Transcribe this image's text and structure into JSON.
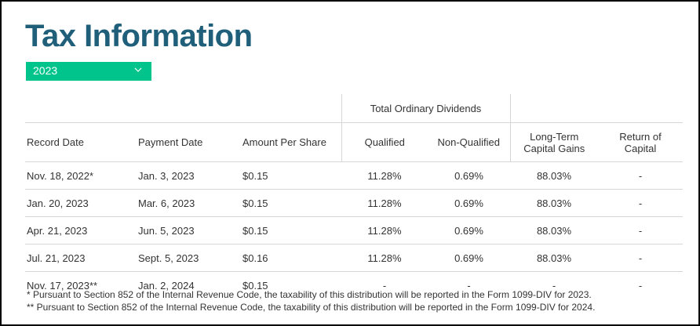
{
  "page": {
    "title": "Tax Information",
    "year_select": {
      "value": "2023",
      "icon": "chevron-down-icon"
    }
  },
  "table": {
    "group_header": "Total Ordinary Dividends",
    "columns": {
      "record_date": "Record Date",
      "payment_date": "Payment Date",
      "amount": "Amount Per Share",
      "qualified": "Qualified",
      "non_qualified": "Non-Qualified",
      "long_term_1": "Long-Term",
      "long_term_2": "Capital Gains",
      "return_1": "Return of",
      "return_2": "Capital"
    },
    "rows": [
      {
        "record_date": "Nov. 18, 2022*",
        "payment_date": "Jan. 3, 2023",
        "amount": "$0.15",
        "qualified": "11.28%",
        "non_qualified": "0.69%",
        "long_term": "88.03%",
        "return_of_capital": "-"
      },
      {
        "record_date": "Jan. 20, 2023",
        "payment_date": "Mar. 6, 2023",
        "amount": "$0.15",
        "qualified": "11.28%",
        "non_qualified": "0.69%",
        "long_term": "88.03%",
        "return_of_capital": "-"
      },
      {
        "record_date": "Apr. 21, 2023",
        "payment_date": "Jun. 5, 2023",
        "amount": "$0.15",
        "qualified": "11.28%",
        "non_qualified": "0.69%",
        "long_term": "88.03%",
        "return_of_capital": "-"
      },
      {
        "record_date": "Jul. 21, 2023",
        "payment_date": "Sept. 5, 2023",
        "amount": "$0.16",
        "qualified": "11.28%",
        "non_qualified": "0.69%",
        "long_term": "88.03%",
        "return_of_capital": "-"
      },
      {
        "record_date": "Nov. 17, 2023**",
        "payment_date": "Jan. 2, 2024",
        "amount": "$0.15",
        "qualified": "-",
        "non_qualified": "-",
        "long_term": "-",
        "return_of_capital": "-"
      }
    ]
  },
  "footnotes": [
    "* Pursuant to Section 852 of the Internal Revenue Code, the taxability of this distribution will be reported in the Form 1099-DIV for 2023.",
    "** Pursuant to Section 852 of the Internal Revenue Code, the taxability of this distribution will be reported in the Form 1099-DIV for 2024."
  ],
  "colors": {
    "title": "#1f5f7a",
    "accent": "#00c48c",
    "border": "#d6d6d6"
  }
}
